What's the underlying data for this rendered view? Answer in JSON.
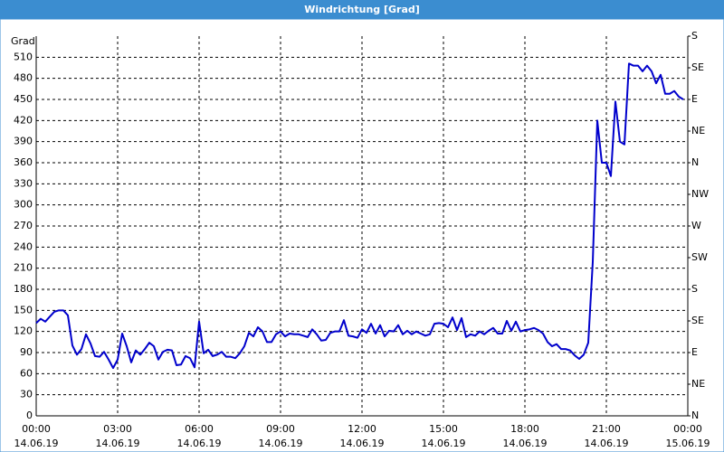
{
  "window": {
    "title": "Windrichtung [Grad]"
  },
  "chart_data": {
    "type": "line",
    "y_label": "Grad",
    "x": [
      0,
      10,
      20,
      30,
      40,
      50,
      60,
      70,
      80,
      90,
      100,
      110,
      120,
      130,
      140,
      150,
      160,
      170,
      180,
      190,
      200,
      210,
      220,
      230,
      240,
      250,
      260,
      270,
      280,
      290,
      300,
      310,
      320,
      330,
      340,
      350,
      360,
      370,
      380,
      390,
      400,
      410,
      420,
      430,
      440,
      450,
      460,
      470,
      480,
      490,
      500,
      510,
      520,
      530,
      540,
      550,
      560,
      570,
      580,
      590,
      600,
      610,
      620,
      630,
      640,
      650,
      660,
      670,
      680,
      690,
      700,
      710,
      720,
      730,
      740,
      750,
      760,
      770,
      780,
      790,
      800,
      810,
      820,
      830,
      840,
      850,
      860,
      870,
      880,
      890,
      900,
      910,
      920,
      930,
      940,
      950,
      960,
      970,
      980,
      990,
      1000,
      1010,
      1020,
      1030,
      1040,
      1050,
      1060,
      1070,
      1080,
      1090,
      1100,
      1110,
      1120,
      1130,
      1140,
      1150,
      1160,
      1170,
      1180,
      1190,
      1200,
      1210,
      1220,
      1230,
      1240,
      1250,
      1260,
      1270,
      1280,
      1290,
      1300,
      1310,
      1320,
      1330,
      1340,
      1350,
      1360,
      1370,
      1380,
      1390,
      1400,
      1410,
      1420,
      1430
    ],
    "series": [
      {
        "name": "Windrichtung",
        "color": "#0000cc",
        "values": [
          132,
          138,
          134,
          141,
          148,
          150,
          150,
          143,
          100,
          87,
          95,
          116,
          103,
          85,
          84,
          91,
          80,
          68,
          80,
          117,
          99,
          76,
          93,
          87,
          95,
          104,
          99,
          80,
          91,
          94,
          93,
          72,
          73,
          85,
          82,
          69,
          134,
          89,
          94,
          85,
          87,
          91,
          84,
          84,
          82,
          89,
          99,
          118,
          113,
          126,
          120,
          105,
          105,
          116,
          120,
          113,
          117,
          116,
          116,
          114,
          112,
          123,
          116,
          107,
          108,
          118,
          120,
          120,
          136,
          114,
          113,
          111,
          123,
          118,
          131,
          117,
          129,
          113,
          121,
          120,
          129,
          116,
          121,
          116,
          120,
          117,
          114,
          116,
          131,
          132,
          131,
          126,
          140,
          122,
          139,
          112,
          116,
          114,
          120,
          116,
          121,
          125,
          117,
          117,
          135,
          121,
          134,
          120,
          122,
          123,
          125,
          122,
          117,
          105,
          99,
          102,
          95,
          95,
          93,
          86,
          81,
          87,
          104,
          219,
          420,
          360,
          360,
          341,
          447,
          390,
          386,
          501,
          498,
          498,
          490,
          498,
          490,
          473,
          485,
          458,
          458,
          462,
          454,
          450
        ]
      }
    ],
    "xlim": [
      0,
      1440
    ],
    "xticks": [
      {
        "value": 0,
        "label": "00:00",
        "date": "14.06.19"
      },
      {
        "value": 180,
        "label": "03:00",
        "date": "14.06.19"
      },
      {
        "value": 360,
        "label": "06:00",
        "date": "14.06.19"
      },
      {
        "value": 540,
        "label": "09:00",
        "date": "14.06.19"
      },
      {
        "value": 720,
        "label": "12:00",
        "date": "14.06.19"
      },
      {
        "value": 900,
        "label": "15:00",
        "date": "14.06.19"
      },
      {
        "value": 1080,
        "label": "18:00",
        "date": "14.06.19"
      },
      {
        "value": 1260,
        "label": "21:00",
        "date": "14.06.19"
      },
      {
        "value": 1440,
        "label": "00:00",
        "date": "15.06.19"
      }
    ],
    "ylim": [
      0,
      540
    ],
    "yticks": [
      0,
      30,
      60,
      90,
      120,
      150,
      180,
      210,
      240,
      270,
      300,
      330,
      360,
      390,
      420,
      450,
      480,
      510
    ],
    "y2lim": [
      0,
      540
    ],
    "y2ticks": [
      {
        "value": 0,
        "label": "N"
      },
      {
        "value": 45,
        "label": "NE"
      },
      {
        "value": 90,
        "label": "E"
      },
      {
        "value": 135,
        "label": "SE"
      },
      {
        "value": 180,
        "label": "S"
      },
      {
        "value": 225,
        "label": "SW"
      },
      {
        "value": 270,
        "label": "W"
      },
      {
        "value": 315,
        "label": "NW"
      },
      {
        "value": 360,
        "label": "N"
      },
      {
        "value": 405,
        "label": "NE"
      },
      {
        "value": 450,
        "label": "E"
      },
      {
        "value": 495,
        "label": "SE"
      },
      {
        "value": 540,
        "label": "S"
      }
    ],
    "grid": true
  }
}
